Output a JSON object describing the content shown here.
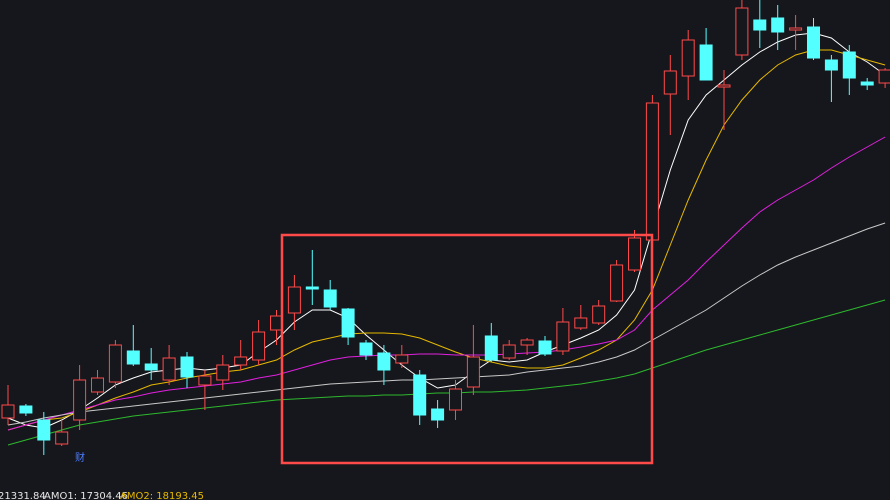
{
  "chart_data": {
    "type": "candlestick",
    "ylim": [
      0,
      50
    ],
    "up_color": "#ff4a4a",
    "down_color": "#54ffff",
    "open": [
      8.2,
      9.4,
      8.0,
      5.6,
      8.0,
      10.8,
      11.8,
      14.9,
      13.6,
      12.0,
      14.3,
      11.5,
      12.0,
      13.5,
      14.0,
      17.0,
      18.7,
      21.3,
      21.0,
      19.1,
      15.7,
      14.7,
      13.7,
      12.5,
      9.1,
      9.0,
      11.3,
      16.4,
      14.2,
      15.5,
      15.9,
      14.9,
      17.2,
      17.7,
      19.9,
      23.0,
      26.0,
      40.6,
      42.4,
      45.5,
      41.3,
      44.5,
      48.0,
      48.2,
      47.0,
      47.3,
      44.0,
      44.8,
      41.8,
      41.7
    ],
    "high": [
      11.5,
      9.6,
      8.8,
      8.0,
      13.5,
      13.0,
      16.0,
      17.5,
      15.2,
      15.5,
      14.8,
      13.0,
      14.5,
      16.0,
      18.0,
      19.0,
      22.5,
      25.0,
      22.0,
      19.2,
      16.0,
      15.5,
      15.5,
      13.0,
      10.0,
      12.0,
      17.5,
      17.7,
      16.0,
      16.2,
      16.4,
      19.2,
      19.5,
      20.0,
      24.0,
      27.0,
      40.5,
      44.5,
      47.0,
      47.2,
      43.0,
      50.0,
      50.0,
      49.5,
      48.5,
      48.2,
      44.5,
      45.5,
      42.2,
      43.2
    ],
    "low": [
      7.5,
      8.4,
      4.5,
      5.4,
      7.0,
      10.5,
      11.2,
      13.4,
      12.0,
      11.5,
      11.2,
      9.0,
      11.0,
      13.0,
      13.5,
      15.5,
      17.0,
      19.5,
      19.0,
      15.5,
      14.0,
      11.5,
      13.2,
      7.5,
      7.2,
      8.0,
      10.5,
      13.8,
      14.0,
      14.5,
      14.4,
      14.5,
      17.0,
      17.5,
      19.8,
      22.8,
      25.5,
      36.5,
      40.0,
      42.0,
      37.0,
      44.0,
      45.2,
      45.0,
      45.0,
      44.0,
      39.8,
      40.5,
      41.0,
      41.2
    ],
    "close": [
      9.5,
      8.7,
      6.0,
      6.8,
      12.0,
      12.2,
      15.5,
      13.6,
      13.0,
      14.2,
      12.3,
      12.4,
      13.5,
      14.3,
      16.8,
      18.4,
      21.3,
      21.1,
      19.3,
      16.3,
      14.5,
      13.0,
      14.5,
      8.5,
      8.0,
      11.1,
      14.3,
      14.0,
      15.5,
      16.0,
      14.6,
      17.8,
      18.2,
      19.4,
      23.5,
      26.2,
      39.7,
      42.9,
      46.0,
      42.0,
      41.5,
      49.2,
      47.0,
      46.8,
      47.2,
      44.2,
      43.0,
      42.2,
      41.5,
      43.0
    ],
    "series": [
      {
        "color": "#ffffff",
        "values": [
          8.2,
          7.5,
          7.2,
          8.0,
          9.0,
          10.2,
          11.5,
          12.2,
          12.8,
          13.0,
          13.2,
          13.0,
          13.2,
          13.5,
          14.8,
          16.0,
          17.8,
          19.0,
          19.0,
          18.2,
          16.5,
          15.0,
          13.5,
          12.2,
          11.2,
          11.5,
          12.8,
          14.0,
          13.8,
          14.0,
          14.8,
          15.5,
          16.2,
          17.0,
          18.5,
          21.0,
          27.0,
          33.0,
          38.0,
          40.5,
          42.0,
          43.5,
          44.8,
          45.8,
          46.5,
          46.7,
          46.2,
          44.8,
          43.8,
          42.5
        ]
      },
      {
        "color": "#e6b800",
        "values": [
          7.0,
          7.5,
          8.0,
          8.2,
          8.8,
          9.5,
          10.2,
          10.8,
          11.5,
          11.8,
          12.2,
          12.5,
          12.8,
          13.0,
          13.5,
          14.0,
          15.0,
          15.8,
          16.2,
          16.6,
          16.7,
          16.7,
          16.6,
          16.2,
          15.5,
          14.8,
          14.2,
          13.8,
          13.4,
          13.2,
          13.2,
          13.5,
          14.2,
          15.0,
          16.0,
          18.0,
          21.0,
          25.5,
          30.0,
          34.0,
          37.5,
          40.0,
          42.0,
          43.5,
          44.5,
          45.0,
          45.0,
          44.5,
          44.0,
          43.5
        ]
      },
      {
        "color": "#e020e0",
        "values": [
          7.0,
          7.5,
          8.0,
          8.5,
          9.0,
          9.5,
          10.0,
          10.3,
          10.7,
          11.0,
          11.2,
          11.4,
          11.6,
          11.8,
          12.2,
          12.5,
          13.0,
          13.5,
          14.0,
          14.3,
          14.4,
          14.5,
          14.5,
          14.6,
          14.6,
          14.5,
          14.5,
          14.5,
          14.6,
          14.7,
          14.8,
          15.0,
          15.3,
          15.6,
          16.0,
          17.0,
          19.0,
          20.5,
          22.0,
          23.8,
          25.5,
          27.2,
          28.8,
          30.0,
          31.0,
          32.0,
          33.2,
          34.3,
          35.3,
          36.3
        ]
      },
      {
        "color": "#c8c8c8",
        "values": [
          7.5,
          7.8,
          8.2,
          8.5,
          8.8,
          9.0,
          9.2,
          9.4,
          9.6,
          9.8,
          10.0,
          10.2,
          10.4,
          10.6,
          10.8,
          11.0,
          11.2,
          11.4,
          11.6,
          11.7,
          11.8,
          11.9,
          12.0,
          12.0,
          12.1,
          12.2,
          12.3,
          12.4,
          12.5,
          12.8,
          13.0,
          13.2,
          13.4,
          13.8,
          14.3,
          15.0,
          16.0,
          17.0,
          18.0,
          19.0,
          20.2,
          21.4,
          22.5,
          23.5,
          24.3,
          25.0,
          25.7,
          26.4,
          27.1,
          27.7
        ]
      },
      {
        "color": "#2eb82e",
        "values": [
          5.5,
          6.0,
          6.5,
          7.0,
          7.5,
          7.8,
          8.1,
          8.4,
          8.6,
          8.8,
          9.0,
          9.2,
          9.4,
          9.6,
          9.8,
          10.0,
          10.1,
          10.2,
          10.3,
          10.4,
          10.4,
          10.5,
          10.5,
          10.6,
          10.7,
          10.7,
          10.8,
          10.8,
          10.9,
          11.0,
          11.2,
          11.4,
          11.6,
          11.9,
          12.2,
          12.6,
          13.2,
          13.8,
          14.4,
          15.0,
          15.5,
          16.0,
          16.5,
          17.0,
          17.5,
          18.0,
          18.5,
          19.0,
          19.5,
          20.0
        ]
      }
    ],
    "marker": "财",
    "footer": [
      "21331.84",
      "AMO1: 17304.46",
      "AMO2: 18193.45"
    ]
  }
}
